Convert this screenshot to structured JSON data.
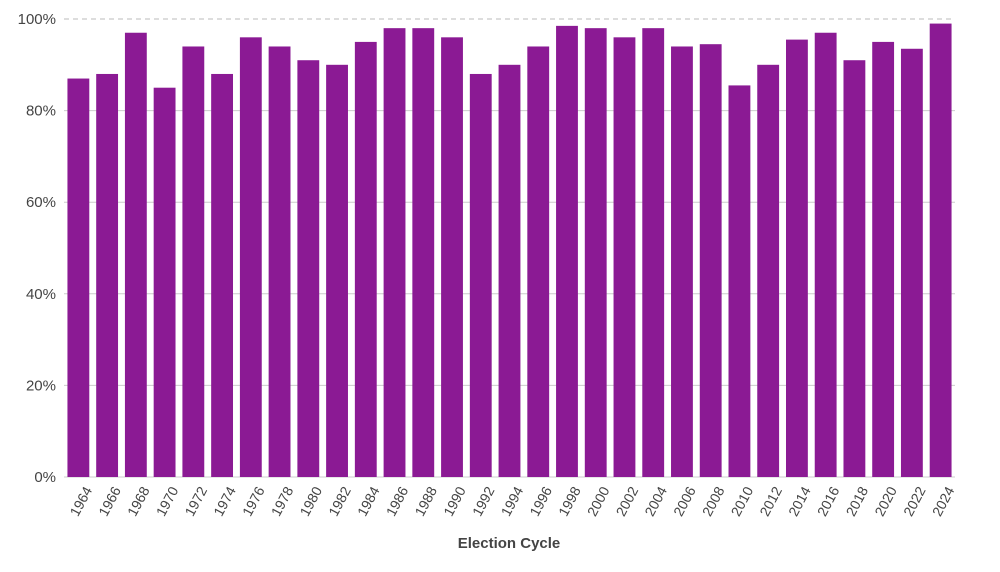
{
  "chart_data": {
    "type": "bar",
    "title": "",
    "xlabel": "Election Cycle",
    "ylabel": "",
    "ylim": [
      0,
      100
    ],
    "y_ticks": [
      0,
      20,
      40,
      60,
      80,
      100
    ],
    "y_tick_labels": [
      "0%",
      "20%",
      "40%",
      "60%",
      "80%",
      "100%"
    ],
    "grid": true,
    "legend": "none",
    "categories": [
      "1964",
      "1966",
      "1968",
      "1970",
      "1972",
      "1974",
      "1976",
      "1978",
      "1980",
      "1982",
      "1984",
      "1986",
      "1988",
      "1990",
      "1992",
      "1994",
      "1996",
      "1998",
      "2000",
      "2002",
      "2004",
      "2006",
      "2008",
      "2010",
      "2012",
      "2014",
      "2016",
      "2018",
      "2020",
      "2022",
      "2024"
    ],
    "values": [
      87,
      88,
      97,
      85,
      94,
      88,
      96,
      94,
      91,
      90,
      95,
      98,
      98,
      96,
      88,
      90,
      94,
      98.5,
      98,
      96,
      98,
      94,
      94.5,
      85.5,
      90,
      95.5,
      97,
      91,
      95,
      93.5,
      99
    ],
    "colors": {
      "bar": "#8B1A94",
      "grid": "#cccccc",
      "top_grid": "#bbbbbb"
    }
  }
}
